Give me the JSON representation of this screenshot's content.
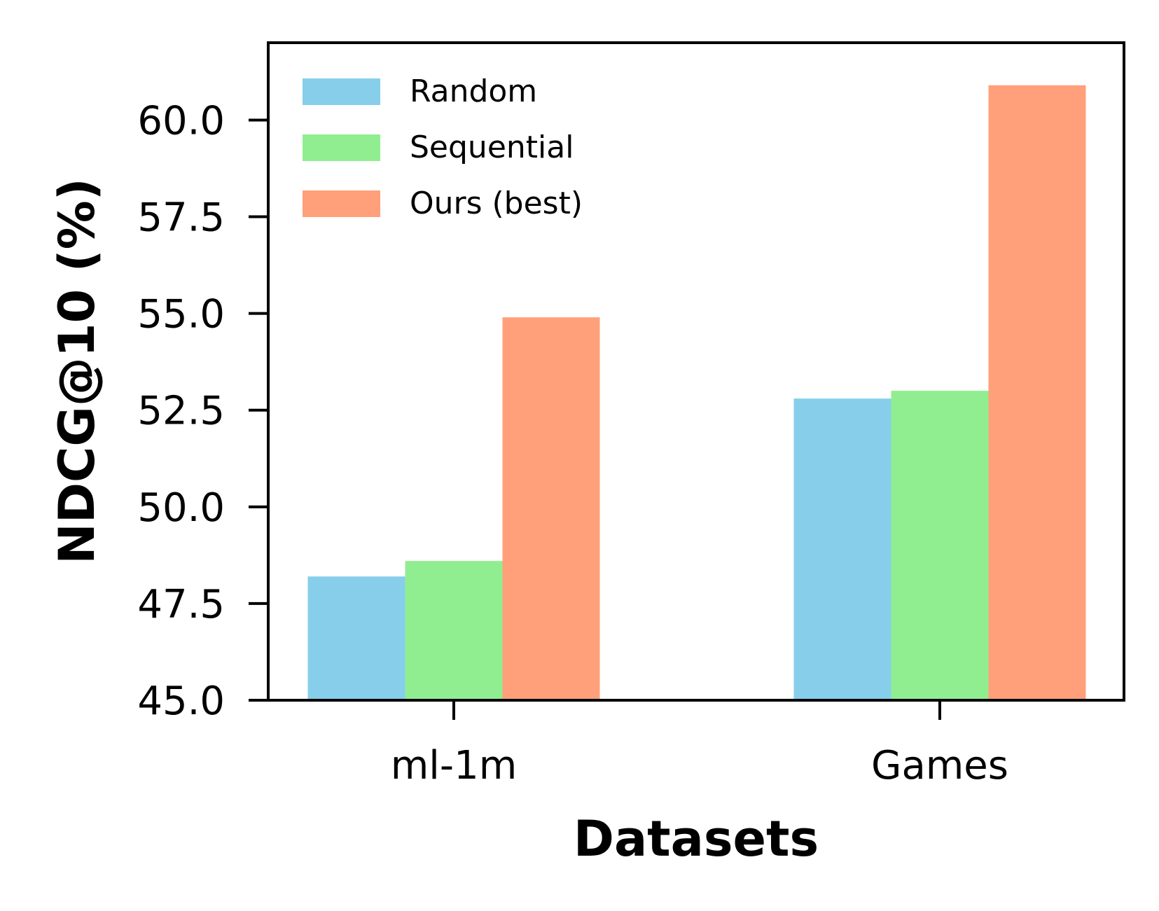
{
  "chart_data": {
    "type": "bar",
    "title": "",
    "xlabel": "Datasets",
    "ylabel": "NDCG@10 (%)",
    "categories": [
      "ml-1m",
      "Games"
    ],
    "series": [
      {
        "name": "Random",
        "color": "#87ceeb",
        "values": [
          48.2,
          52.8
        ]
      },
      {
        "name": "Sequential",
        "color": "#90ee90",
        "values": [
          48.6,
          53.0
        ]
      },
      {
        "name": "Ours (best)",
        "color": "#ffa07a",
        "values": [
          54.9,
          60.9
        ]
      }
    ],
    "ylim": [
      45.0,
      62.0
    ],
    "yticks": [
      "45.0",
      "47.5",
      "50.0",
      "52.5",
      "55.0",
      "57.5",
      "60.0"
    ],
    "grid": false,
    "legend_position": "top-left"
  }
}
